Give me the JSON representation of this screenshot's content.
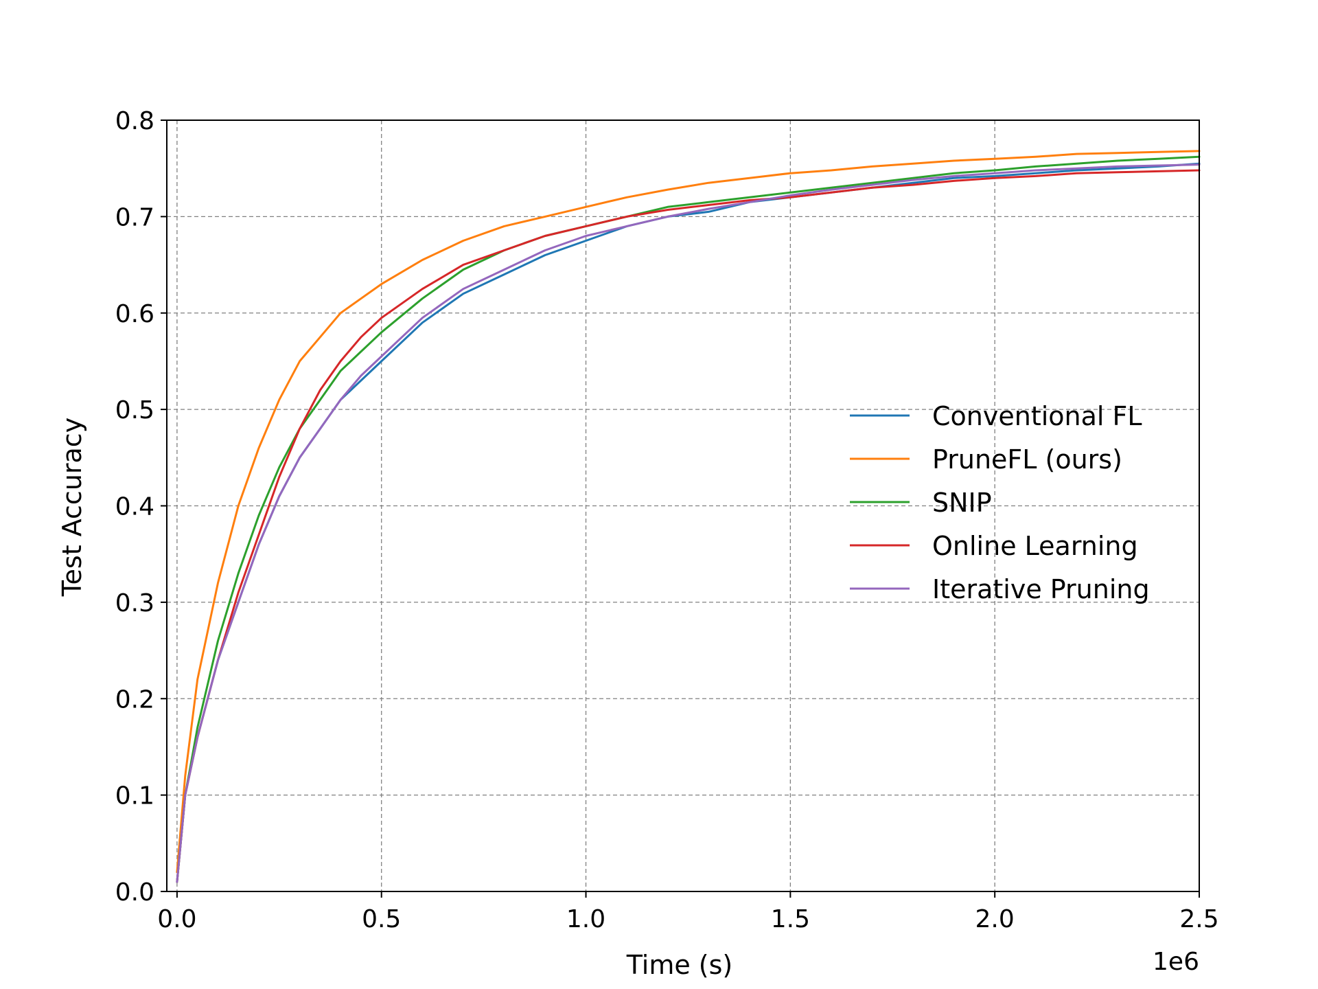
{
  "chart_data": {
    "type": "line",
    "title": "",
    "xlabel": "Time (s)",
    "ylabel": "Test Accuracy",
    "x_offset_text": "1e6",
    "xlim": [
      -0.025,
      2.5
    ],
    "ylim": [
      0.0,
      0.8
    ],
    "x_ticks": [
      0.0,
      0.5,
      1.0,
      1.5,
      2.0,
      2.5
    ],
    "x_tick_labels": [
      "0.0",
      "0.5",
      "1.0",
      "1.5",
      "2.0",
      "2.5"
    ],
    "y_ticks": [
      0.0,
      0.1,
      0.2,
      0.3,
      0.4,
      0.5,
      0.6,
      0.7,
      0.8
    ],
    "y_tick_labels": [
      "0.0",
      "0.1",
      "0.2",
      "0.3",
      "0.4",
      "0.5",
      "0.6",
      "0.7",
      "0.8"
    ],
    "grid": true,
    "legend_position": "center-right",
    "series": [
      {
        "name": "Conventional FL",
        "color": "#1f77b4",
        "x": [
          0.0,
          0.02,
          0.05,
          0.1,
          0.15,
          0.2,
          0.25,
          0.3,
          0.35,
          0.4,
          0.45,
          0.5,
          0.6,
          0.7,
          0.8,
          0.9,
          1.0,
          1.1,
          1.2,
          1.3,
          1.4,
          1.5,
          1.6,
          1.7,
          1.8,
          1.9,
          2.0,
          2.1,
          2.2,
          2.3,
          2.4,
          2.5
        ],
        "y": [
          0.01,
          0.1,
          0.16,
          0.24,
          0.3,
          0.36,
          0.41,
          0.45,
          0.48,
          0.51,
          0.53,
          0.55,
          0.59,
          0.62,
          0.64,
          0.66,
          0.675,
          0.69,
          0.7,
          0.705,
          0.715,
          0.72,
          0.725,
          0.73,
          0.735,
          0.74,
          0.742,
          0.745,
          0.748,
          0.75,
          0.752,
          0.755
        ]
      },
      {
        "name": "PruneFL (ours)",
        "color": "#ff7f0e",
        "x": [
          0.0,
          0.02,
          0.05,
          0.1,
          0.15,
          0.2,
          0.25,
          0.3,
          0.35,
          0.4,
          0.45,
          0.5,
          0.6,
          0.7,
          0.8,
          0.9,
          1.0,
          1.1,
          1.2,
          1.3,
          1.4,
          1.5,
          1.6,
          1.7,
          1.8,
          1.9,
          2.0,
          2.1,
          2.2,
          2.3,
          2.4,
          2.5
        ],
        "y": [
          0.02,
          0.12,
          0.22,
          0.32,
          0.4,
          0.46,
          0.51,
          0.55,
          0.575,
          0.6,
          0.615,
          0.63,
          0.655,
          0.675,
          0.69,
          0.7,
          0.71,
          0.72,
          0.728,
          0.735,
          0.74,
          0.745,
          0.748,
          0.752,
          0.755,
          0.758,
          0.76,
          0.762,
          0.765,
          0.766,
          0.767,
          0.768
        ]
      },
      {
        "name": "SNIP",
        "color": "#2ca02c",
        "x": [
          0.0,
          0.02,
          0.05,
          0.1,
          0.15,
          0.2,
          0.25,
          0.3,
          0.35,
          0.4,
          0.45,
          0.5,
          0.6,
          0.7,
          0.8,
          0.9,
          1.0,
          1.1,
          1.2,
          1.3,
          1.4,
          1.5,
          1.6,
          1.7,
          1.8,
          1.9,
          2.0,
          2.1,
          2.2,
          2.3,
          2.4,
          2.5
        ],
        "y": [
          0.01,
          0.1,
          0.17,
          0.26,
          0.33,
          0.39,
          0.44,
          0.48,
          0.51,
          0.54,
          0.56,
          0.58,
          0.615,
          0.645,
          0.665,
          0.68,
          0.69,
          0.7,
          0.71,
          0.715,
          0.72,
          0.725,
          0.73,
          0.735,
          0.74,
          0.745,
          0.748,
          0.752,
          0.755,
          0.758,
          0.76,
          0.762
        ]
      },
      {
        "name": "Online Learning",
        "color": "#d62728",
        "x": [
          0.0,
          0.02,
          0.05,
          0.1,
          0.15,
          0.2,
          0.25,
          0.3,
          0.35,
          0.4,
          0.45,
          0.5,
          0.6,
          0.7,
          0.8,
          0.9,
          1.0,
          1.1,
          1.2,
          1.3,
          1.4,
          1.5,
          1.6,
          1.7,
          1.8,
          1.9,
          2.0,
          2.1,
          2.2,
          2.3,
          2.4,
          2.5
        ],
        "y": [
          0.01,
          0.1,
          0.16,
          0.24,
          0.31,
          0.37,
          0.43,
          0.48,
          0.52,
          0.55,
          0.575,
          0.595,
          0.625,
          0.65,
          0.665,
          0.68,
          0.69,
          0.7,
          0.707,
          0.712,
          0.717,
          0.72,
          0.725,
          0.73,
          0.733,
          0.737,
          0.74,
          0.742,
          0.745,
          0.746,
          0.747,
          0.748
        ]
      },
      {
        "name": "Iterative Pruning",
        "color": "#9467bd",
        "x": [
          0.0,
          0.02,
          0.05,
          0.1,
          0.15,
          0.2,
          0.25,
          0.3,
          0.35,
          0.4,
          0.45,
          0.5,
          0.6,
          0.7,
          0.8,
          0.9,
          1.0,
          1.1,
          1.2,
          1.3,
          1.4,
          1.5,
          1.6,
          1.7,
          1.8,
          1.9,
          2.0,
          2.1,
          2.2,
          2.3,
          2.4,
          2.5
        ],
        "y": [
          0.01,
          0.1,
          0.16,
          0.24,
          0.3,
          0.36,
          0.41,
          0.45,
          0.48,
          0.51,
          0.535,
          0.555,
          0.595,
          0.625,
          0.645,
          0.665,
          0.68,
          0.69,
          0.7,
          0.708,
          0.715,
          0.722,
          0.728,
          0.733,
          0.738,
          0.742,
          0.745,
          0.748,
          0.75,
          0.752,
          0.753,
          0.754
        ]
      }
    ]
  }
}
